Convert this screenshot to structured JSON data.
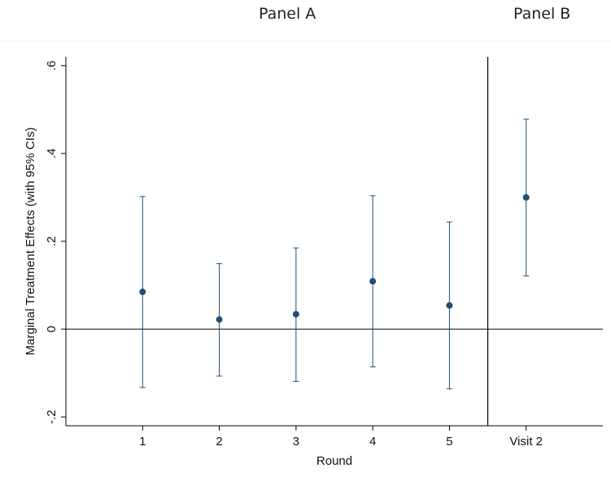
{
  "panels": {
    "left_label": "Panel A",
    "right_label": "Panel B"
  },
  "chart_data": {
    "type": "scatter",
    "subtype": "point-estimate with 95% confidence interval error bars",
    "title": "",
    "xlabel": "Round",
    "ylabel": "Marginal Treatment Effects (with 95% CIs)",
    "categories": [
      "1",
      "2",
      "3",
      "4",
      "5",
      "Visit 2"
    ],
    "x_positions": [
      1,
      2,
      3,
      4,
      5,
      6
    ],
    "xlim": [
      0,
      7
    ],
    "ylim": [
      -0.22,
      0.62
    ],
    "yticks": [
      -0.2,
      0,
      0.2,
      0.4,
      0.6
    ],
    "ytick_labels": [
      "-.2",
      "0",
      ".2",
      ".4",
      ".6"
    ],
    "reference_line_y": 0,
    "separator_between": [
      "5",
      "Visit 2"
    ],
    "grid": false,
    "legend": "none",
    "series": [
      {
        "estimates": [
          0.085,
          0.022,
          0.034,
          0.109,
          0.054,
          0.3
        ],
        "ci_lower": [
          -0.133,
          -0.107,
          -0.119,
          -0.086,
          -0.136,
          0.121
        ],
        "ci_upper": [
          0.302,
          0.149,
          0.185,
          0.304,
          0.244,
          0.478
        ],
        "color": "#1f4e79"
      }
    ]
  }
}
